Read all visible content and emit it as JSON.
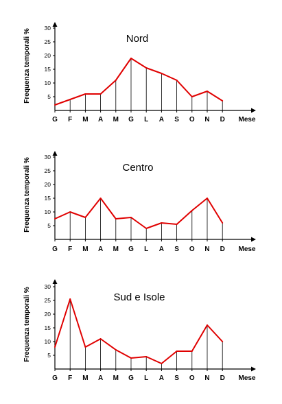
{
  "chart_data": [
    {
      "type": "line",
      "title": "Nord",
      "ylabel": "Frequenza temporali %",
      "xlabel": "Mese",
      "categories": [
        "G",
        "F",
        "M",
        "A",
        "M",
        "G",
        "L",
        "A",
        "S",
        "O",
        "N",
        "D"
      ],
      "yticks": [
        5,
        10,
        15,
        20,
        25,
        30
      ],
      "ylim": [
        0,
        32
      ],
      "values": [
        2,
        4,
        6,
        6,
        11,
        19,
        15.5,
        13.5,
        11,
        5,
        7,
        3.5
      ],
      "color": "#e00000"
    },
    {
      "type": "line",
      "title": "Centro",
      "ylabel": "Frequenza temporali %",
      "xlabel": "Mese",
      "categories": [
        "G",
        "F",
        "M",
        "A",
        "M",
        "G",
        "L",
        "A",
        "S",
        "O",
        "N",
        "D"
      ],
      "yticks": [
        5,
        10,
        15,
        20,
        25,
        30
      ],
      "ylim": [
        0,
        32
      ],
      "values": [
        7.5,
        10,
        8,
        15,
        7.5,
        8,
        4,
        6,
        5.5,
        10.5,
        15,
        6
      ],
      "color": "#e00000"
    },
    {
      "type": "line",
      "title": "Sud e Isole",
      "ylabel": "Frequenza temporali %",
      "xlabel": "Mese",
      "categories": [
        "G",
        "F",
        "M",
        "A",
        "M",
        "G",
        "L",
        "A",
        "S",
        "O",
        "N",
        "D"
      ],
      "yticks": [
        5,
        10,
        15,
        20,
        25,
        30
      ],
      "ylim": [
        0,
        32
      ],
      "values": [
        8,
        25.5,
        8,
        11,
        7,
        4,
        4.5,
        2,
        6.5,
        6.5,
        16,
        10
      ],
      "color": "#e00000"
    }
  ]
}
